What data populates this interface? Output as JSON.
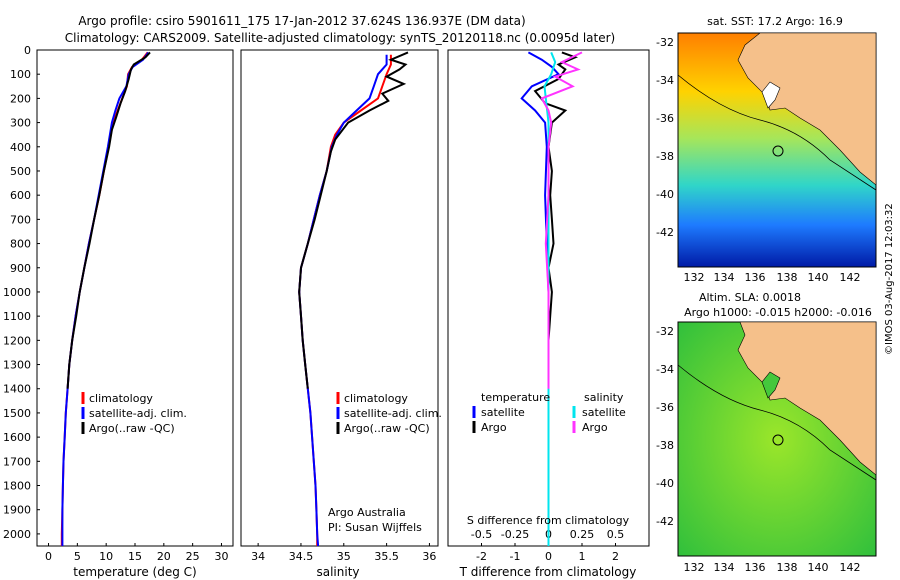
{
  "header": {
    "line1": "Argo profile: csiro 5901611_175 17-Jan-2012 37.624S 136.937E (DM data)",
    "line2": "Climatology: CARS2009. Satellite-adjusted climatology: synTS_20120118.nc (0.0095d later)"
  },
  "depth_axis": {
    "ylim": [
      0,
      2050
    ],
    "ticks": [
      0,
      100,
      200,
      300,
      400,
      500,
      600,
      700,
      800,
      900,
      1000,
      1100,
      1200,
      1300,
      1400,
      1500,
      1600,
      1700,
      1800,
      1900,
      2000
    ]
  },
  "colors": {
    "climatology": "#ff0000",
    "satellite": "#0000ff",
    "argo": "#000000",
    "satellite_s": "#00e5ee",
    "argo_s": "#ff33ff"
  },
  "chart_data": [
    {
      "type": "line",
      "xlabel": "temperature (deg C)",
      "xlim": [
        -2,
        32
      ],
      "xticks": [
        0,
        5,
        10,
        15,
        20,
        25,
        30
      ],
      "legend": {
        "placement": "lower-left",
        "entries": [
          "climatology",
          "satellite-adj. clim.",
          "Argo(..raw -QC)"
        ]
      },
      "series": [
        {
          "name": "climatology",
          "points": [
            [
              17.2,
              10
            ],
            [
              16.2,
              40
            ],
            [
              14.5,
              70
            ],
            [
              13.8,
              100
            ],
            [
              13.6,
              150
            ],
            [
              12.8,
              200
            ],
            [
              12.0,
              250
            ],
            [
              11.2,
              300
            ],
            [
              10.4,
              400
            ],
            [
              9.6,
              500
            ],
            [
              8.8,
              600
            ],
            [
              7.9,
              700
            ],
            [
              7.0,
              800
            ],
            [
              6.2,
              900
            ],
            [
              5.4,
              1000
            ],
            [
              4.7,
              1100
            ],
            [
              4.1,
              1200
            ],
            [
              3.6,
              1300
            ],
            [
              3.3,
              1400
            ],
            [
              3.0,
              1500
            ],
            [
              2.8,
              1600
            ],
            [
              2.6,
              1700
            ],
            [
              2.5,
              1800
            ],
            [
              2.4,
              1900
            ],
            [
              2.3,
              2000
            ],
            [
              2.3,
              2050
            ]
          ]
        },
        {
          "name": "satellite-adj. clim.",
          "points": [
            [
              17.3,
              10
            ],
            [
              16.4,
              40
            ],
            [
              14.6,
              70
            ],
            [
              13.9,
              100
            ],
            [
              13.5,
              150
            ],
            [
              12.3,
              200
            ],
            [
              11.6,
              250
            ],
            [
              11.0,
              300
            ],
            [
              10.3,
              400
            ],
            [
              9.5,
              500
            ],
            [
              8.7,
              600
            ],
            [
              7.9,
              700
            ],
            [
              7.0,
              800
            ],
            [
              6.2,
              900
            ],
            [
              5.4,
              1000
            ],
            [
              4.7,
              1100
            ],
            [
              4.1,
              1200
            ],
            [
              3.6,
              1300
            ],
            [
              3.3,
              1400
            ],
            [
              3.0,
              1500
            ],
            [
              2.8,
              1600
            ],
            [
              2.6,
              1700
            ],
            [
              2.5,
              1800
            ],
            [
              2.4,
              1900
            ],
            [
              2.4,
              2000
            ],
            [
              2.4,
              2050
            ]
          ]
        },
        {
          "name": "Argo(..raw -QC)",
          "points": [
            [
              17.6,
              10
            ],
            [
              16.8,
              30
            ],
            [
              14.8,
              60
            ],
            [
              14.3,
              80
            ],
            [
              13.9,
              120
            ],
            [
              13.3,
              170
            ],
            [
              12.5,
              220
            ],
            [
              11.7,
              280
            ],
            [
              11.0,
              330
            ],
            [
              10.5,
              400
            ],
            [
              9.6,
              500
            ],
            [
              8.8,
              600
            ],
            [
              7.9,
              700
            ],
            [
              7.1,
              800
            ],
            [
              6.2,
              900
            ],
            [
              5.4,
              1000
            ],
            [
              4.8,
              1100
            ],
            [
              4.1,
              1200
            ],
            [
              3.6,
              1300
            ],
            [
              3.3,
              1400
            ]
          ]
        }
      ]
    },
    {
      "type": "line",
      "xlabel": "salinity",
      "xlim": [
        33.8,
        36.1
      ],
      "xticks": [
        34,
        34.5,
        35,
        35.5,
        36
      ],
      "legend": {
        "placement": "lower-right",
        "entries": [
          "climatology",
          "satellite-adj. clim.",
          "Argo(..raw -QC)"
        ]
      },
      "annotation": [
        "Argo Australia",
        "PI: Susan Wijffels"
      ],
      "series": [
        {
          "name": "climatology",
          "points": [
            [
              35.55,
              20
            ],
            [
              35.55,
              60
            ],
            [
              35.5,
              100
            ],
            [
              35.45,
              150
            ],
            [
              35.4,
              200
            ],
            [
              35.2,
              250
            ],
            [
              35.0,
              300
            ],
            [
              34.9,
              350
            ],
            [
              34.85,
              400
            ],
            [
              34.8,
              500
            ],
            [
              34.72,
              600
            ],
            [
              34.65,
              700
            ],
            [
              34.58,
              800
            ],
            [
              34.5,
              900
            ],
            [
              34.48,
              1000
            ],
            [
              34.5,
              1100
            ],
            [
              34.52,
              1200
            ],
            [
              34.55,
              1300
            ],
            [
              34.58,
              1400
            ],
            [
              34.61,
              1500
            ],
            [
              34.63,
              1600
            ],
            [
              34.65,
              1700
            ],
            [
              34.67,
              1800
            ],
            [
              34.68,
              1900
            ],
            [
              34.69,
              2000
            ],
            [
              34.69,
              2050
            ]
          ]
        },
        {
          "name": "satellite-adj. clim.",
          "points": [
            [
              35.5,
              20
            ],
            [
              35.5,
              60
            ],
            [
              35.4,
              100
            ],
            [
              35.35,
              150
            ],
            [
              35.3,
              200
            ],
            [
              35.15,
              250
            ],
            [
              35.0,
              300
            ],
            [
              34.92,
              350
            ],
            [
              34.86,
              400
            ],
            [
              34.8,
              500
            ],
            [
              34.72,
              600
            ],
            [
              34.65,
              700
            ],
            [
              34.58,
              800
            ],
            [
              34.5,
              900
            ],
            [
              34.48,
              1000
            ],
            [
              34.5,
              1100
            ],
            [
              34.52,
              1200
            ],
            [
              34.55,
              1300
            ],
            [
              34.58,
              1400
            ],
            [
              34.61,
              1500
            ],
            [
              34.63,
              1600
            ],
            [
              34.65,
              1700
            ],
            [
              34.67,
              1800
            ],
            [
              34.68,
              1900
            ],
            [
              34.69,
              2000
            ],
            [
              34.7,
              2050
            ]
          ]
        },
        {
          "name": "Argo(..raw -QC)",
          "points": [
            [
              35.75,
              10
            ],
            [
              35.55,
              40
            ],
            [
              35.72,
              60
            ],
            [
              35.65,
              80
            ],
            [
              35.5,
              110
            ],
            [
              35.7,
              140
            ],
            [
              35.45,
              180
            ],
            [
              35.52,
              210
            ],
            [
              35.3,
              250
            ],
            [
              35.05,
              300
            ],
            [
              34.9,
              370
            ],
            [
              34.85,
              420
            ],
            [
              34.8,
              500
            ],
            [
              34.73,
              600
            ],
            [
              34.66,
              700
            ],
            [
              34.58,
              800
            ],
            [
              34.5,
              900
            ],
            [
              34.48,
              1000
            ],
            [
              34.5,
              1100
            ],
            [
              34.52,
              1200
            ],
            [
              34.55,
              1300
            ],
            [
              34.58,
              1400
            ]
          ]
        }
      ]
    },
    {
      "type": "line",
      "xlabel": "T difference from climatology",
      "xlabel_top": "S difference from climatology",
      "xlim": [
        -3,
        3
      ],
      "xticks": [
        -2,
        -1,
        0,
        1,
        2
      ],
      "xticks_top": [
        "-0.5",
        "-0.25",
        "0",
        "0.25",
        "0.5"
      ],
      "legend": {
        "placement": "bottom-center",
        "headers": [
          "temperature",
          "salinity"
        ],
        "entries": [
          "satellite",
          "Argo",
          "satellite",
          "Argo"
        ]
      },
      "series": [
        {
          "name": "satellite",
          "quantity": "temperature",
          "points": [
            [
              -0.6,
              10
            ],
            [
              -0.2,
              40
            ],
            [
              0.1,
              70
            ],
            [
              0.3,
              100
            ],
            [
              -0.5,
              150
            ],
            [
              -0.8,
              200
            ],
            [
              -0.4,
              250
            ],
            [
              -0.1,
              300
            ],
            [
              -0.05,
              400
            ],
            [
              -0.1,
              600
            ],
            [
              -0.05,
              800
            ],
            [
              0,
              1000
            ],
            [
              0,
              1200
            ],
            [
              0,
              1500
            ],
            [
              0,
              1800
            ],
            [
              0,
              2050
            ]
          ]
        },
        {
          "name": "Argo",
          "quantity": "temperature",
          "points": [
            [
              0.4,
              10
            ],
            [
              0.8,
              30
            ],
            [
              0.3,
              60
            ],
            [
              0.5,
              80
            ],
            [
              0.3,
              120
            ],
            [
              -0.4,
              170
            ],
            [
              -0.1,
              220
            ],
            [
              0.5,
              250
            ],
            [
              0.1,
              300
            ],
            [
              0.0,
              400
            ],
            [
              0.1,
              500
            ],
            [
              0.05,
              600
            ],
            [
              0.1,
              700
            ],
            [
              0.15,
              800
            ],
            [
              0.0,
              900
            ],
            [
              0.1,
              1000
            ],
            [
              0.05,
              1100
            ],
            [
              0.0,
              1200
            ],
            [
              0.0,
              1300
            ],
            [
              0.0,
              1400
            ]
          ]
        },
        {
          "name": "satellite",
          "quantity": "salinity",
          "points": [
            [
              0.02,
              10
            ],
            [
              0.05,
              50
            ],
            [
              0.02,
              100
            ],
            [
              -0.03,
              150
            ],
            [
              -0.02,
              200
            ],
            [
              0,
              300
            ],
            [
              0,
              600
            ],
            [
              0,
              1000
            ],
            [
              0,
              1500
            ],
            [
              0,
              2050
            ]
          ]
        },
        {
          "name": "Argo",
          "quantity": "salinity",
          "points": [
            [
              0.25,
              10
            ],
            [
              0.1,
              50
            ],
            [
              0.22,
              80
            ],
            [
              0.05,
              110
            ],
            [
              0.18,
              150
            ],
            [
              -0.05,
              200
            ],
            [
              0.0,
              250
            ],
            [
              0.02,
              300
            ],
            [
              0.0,
              400
            ],
            [
              0.0,
              600
            ],
            [
              -0.02,
              800
            ],
            [
              0.0,
              1000
            ],
            [
              0.0,
              1200
            ],
            [
              0.0,
              1400
            ]
          ]
        }
      ]
    }
  ],
  "maps": {
    "top": {
      "title": "sat. SST: 17.2 Argo: 16.9",
      "label": "SST"
    },
    "bottom": {
      "title_line1": "Altim. SLA: 0.0018",
      "title_line2": "Argo h1000: -0.015 h2000: -0.016",
      "label": "SLA"
    },
    "x_ticks": [
      "132",
      "134",
      "136",
      "138",
      "140",
      "142"
    ],
    "y_ticks": [
      "-32",
      "-34",
      "-36",
      "-38",
      "-40",
      "-42"
    ]
  },
  "side_label": "©IMOS 03-Aug-2017 12:03:32"
}
